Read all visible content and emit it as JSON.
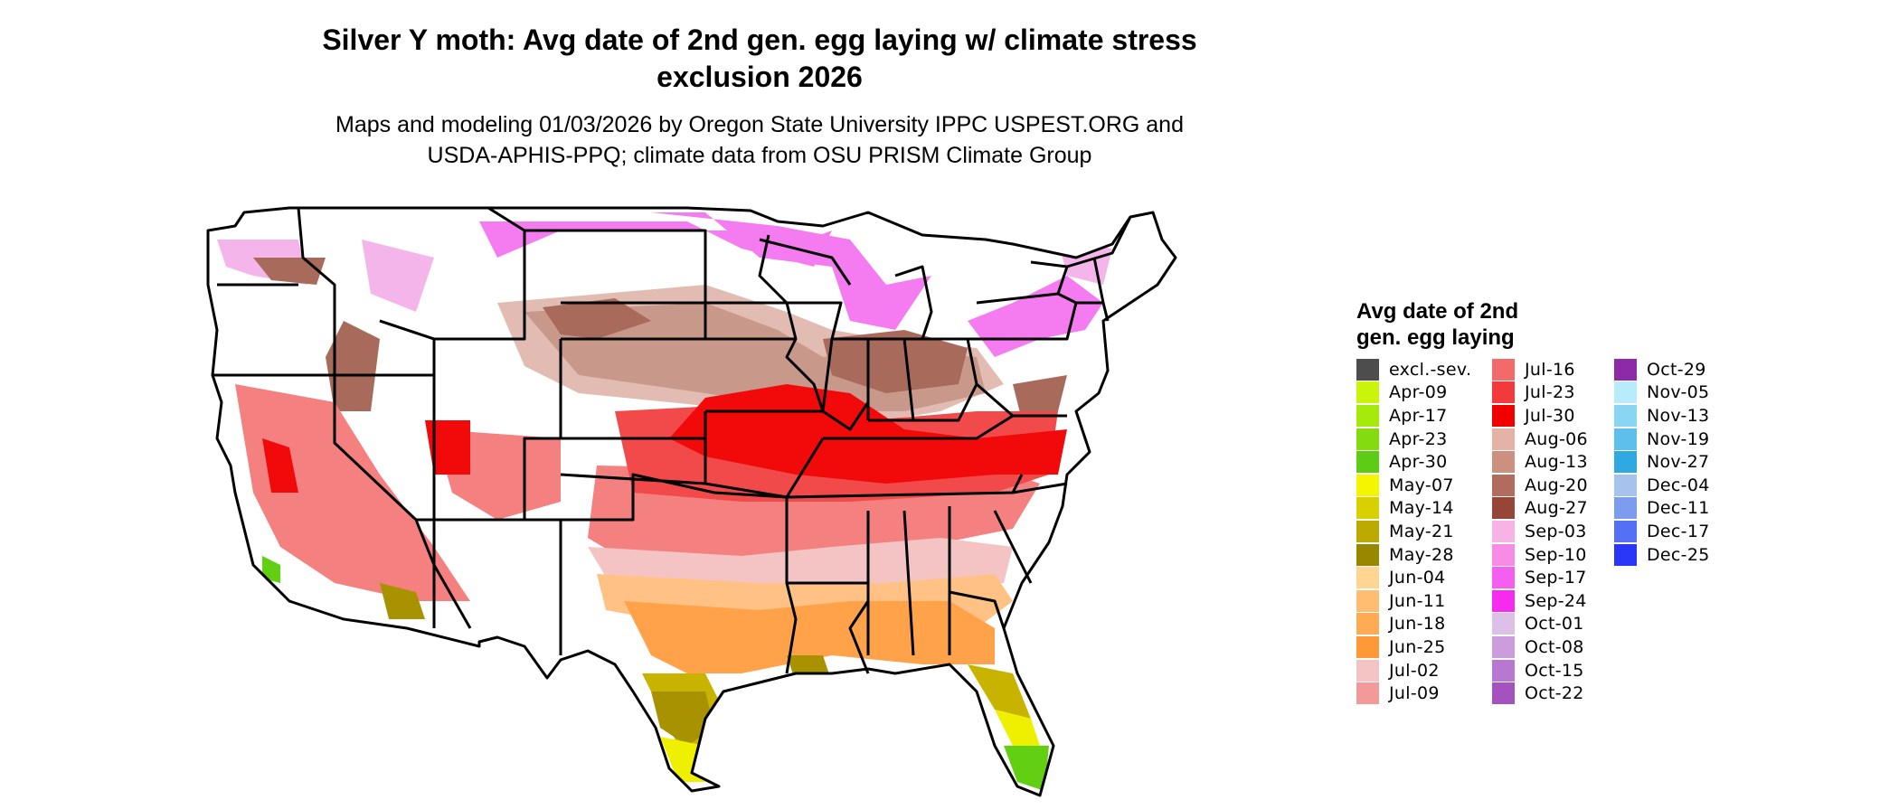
{
  "title_line1": "Silver Y moth: Avg date of 2nd gen. egg laying w/ climate stress",
  "title_line2": "exclusion 2026",
  "subtitle_line1": "Maps and modeling 01/03/2026 by Oregon State University IPPC USPEST.ORG and",
  "subtitle_line2": "USDA-APHIS-PPQ; climate data from OSU PRISM Climate Group",
  "legend": {
    "title_line1": "Avg date of 2nd",
    "title_line2": "gen. egg laying",
    "col1": [
      {
        "label": "excl.-sev.",
        "color": "#4d4d4d"
      },
      {
        "label": "Apr-09",
        "color": "#c8f50a"
      },
      {
        "label": "Apr-17",
        "color": "#a6ea0c"
      },
      {
        "label": "Apr-23",
        "color": "#84dc0f"
      },
      {
        "label": "Apr-30",
        "color": "#5ccd12"
      },
      {
        "label": "May-07",
        "color": "#f5f500"
      },
      {
        "label": "May-14",
        "color": "#d8d000"
      },
      {
        "label": "May-21",
        "color": "#bcaa00"
      },
      {
        "label": "May-28",
        "color": "#9a8700"
      },
      {
        "label": "Jun-04",
        "color": "#ffd591"
      },
      {
        "label": "Jun-11",
        "color": "#ffbd72"
      },
      {
        "label": "Jun-18",
        "color": "#ffab55"
      },
      {
        "label": "Jun-25",
        "color": "#ff9938"
      },
      {
        "label": "Jul-02",
        "color": "#f4c4c4"
      },
      {
        "label": "Jul-09",
        "color": "#f29a9a"
      }
    ],
    "col2": [
      {
        "label": "Jul-16",
        "color": "#f26a6a"
      },
      {
        "label": "Jul-23",
        "color": "#f23a3a"
      },
      {
        "label": "Jul-30",
        "color": "#f00000"
      },
      {
        "label": "Aug-06",
        "color": "#e4b2a6"
      },
      {
        "label": "Aug-13",
        "color": "#cc9080"
      },
      {
        "label": "Aug-20",
        "color": "#b26c5e"
      },
      {
        "label": "Aug-27",
        "color": "#964636"
      },
      {
        "label": "Sep-03",
        "color": "#f7b2e6"
      },
      {
        "label": "Sep-10",
        "color": "#f78ce6"
      },
      {
        "label": "Sep-17",
        "color": "#f55ff0"
      },
      {
        "label": "Sep-24",
        "color": "#f52cf0"
      },
      {
        "label": "Oct-01",
        "color": "#dcc0e8"
      },
      {
        "label": "Oct-08",
        "color": "#cc9cdc"
      },
      {
        "label": "Oct-15",
        "color": "#b878d0"
      },
      {
        "label": "Oct-22",
        "color": "#a352c0"
      }
    ],
    "col3": [
      {
        "label": "Oct-29",
        "color": "#8c2aa8"
      },
      {
        "label": "Nov-05",
        "color": "#b8ecfa"
      },
      {
        "label": "Nov-13",
        "color": "#88d6f4"
      },
      {
        "label": "Nov-19",
        "color": "#5ebfec"
      },
      {
        "label": "Nov-27",
        "color": "#30a8e2"
      },
      {
        "label": "Dec-04",
        "color": "#a8c2ee"
      },
      {
        "label": "Dec-11",
        "color": "#7c9cf0"
      },
      {
        "label": "Dec-17",
        "color": "#5470f4"
      },
      {
        "label": "Dec-25",
        "color": "#2a36f8"
      }
    ]
  },
  "map": {
    "colors": {
      "unexcluded": "#ffffff",
      "border": "#000000",
      "north_pink": "#f57cf0",
      "north_pink_light": "#f4b6ea",
      "brown_dark": "#a86a5a",
      "brown_mid": "#c8988a",
      "brown_light": "#e2bcb2",
      "red_bright": "#f20a0a",
      "red_mid": "#f24a4a",
      "red_light": "#f48080",
      "pink_light": "#f4c4c4",
      "orange": "#ffa24a",
      "orange_light": "#ffc184",
      "olive": "#a89200",
      "olive_light": "#c8b400",
      "yellow": "#eef000",
      "green": "#62cf12"
    }
  }
}
